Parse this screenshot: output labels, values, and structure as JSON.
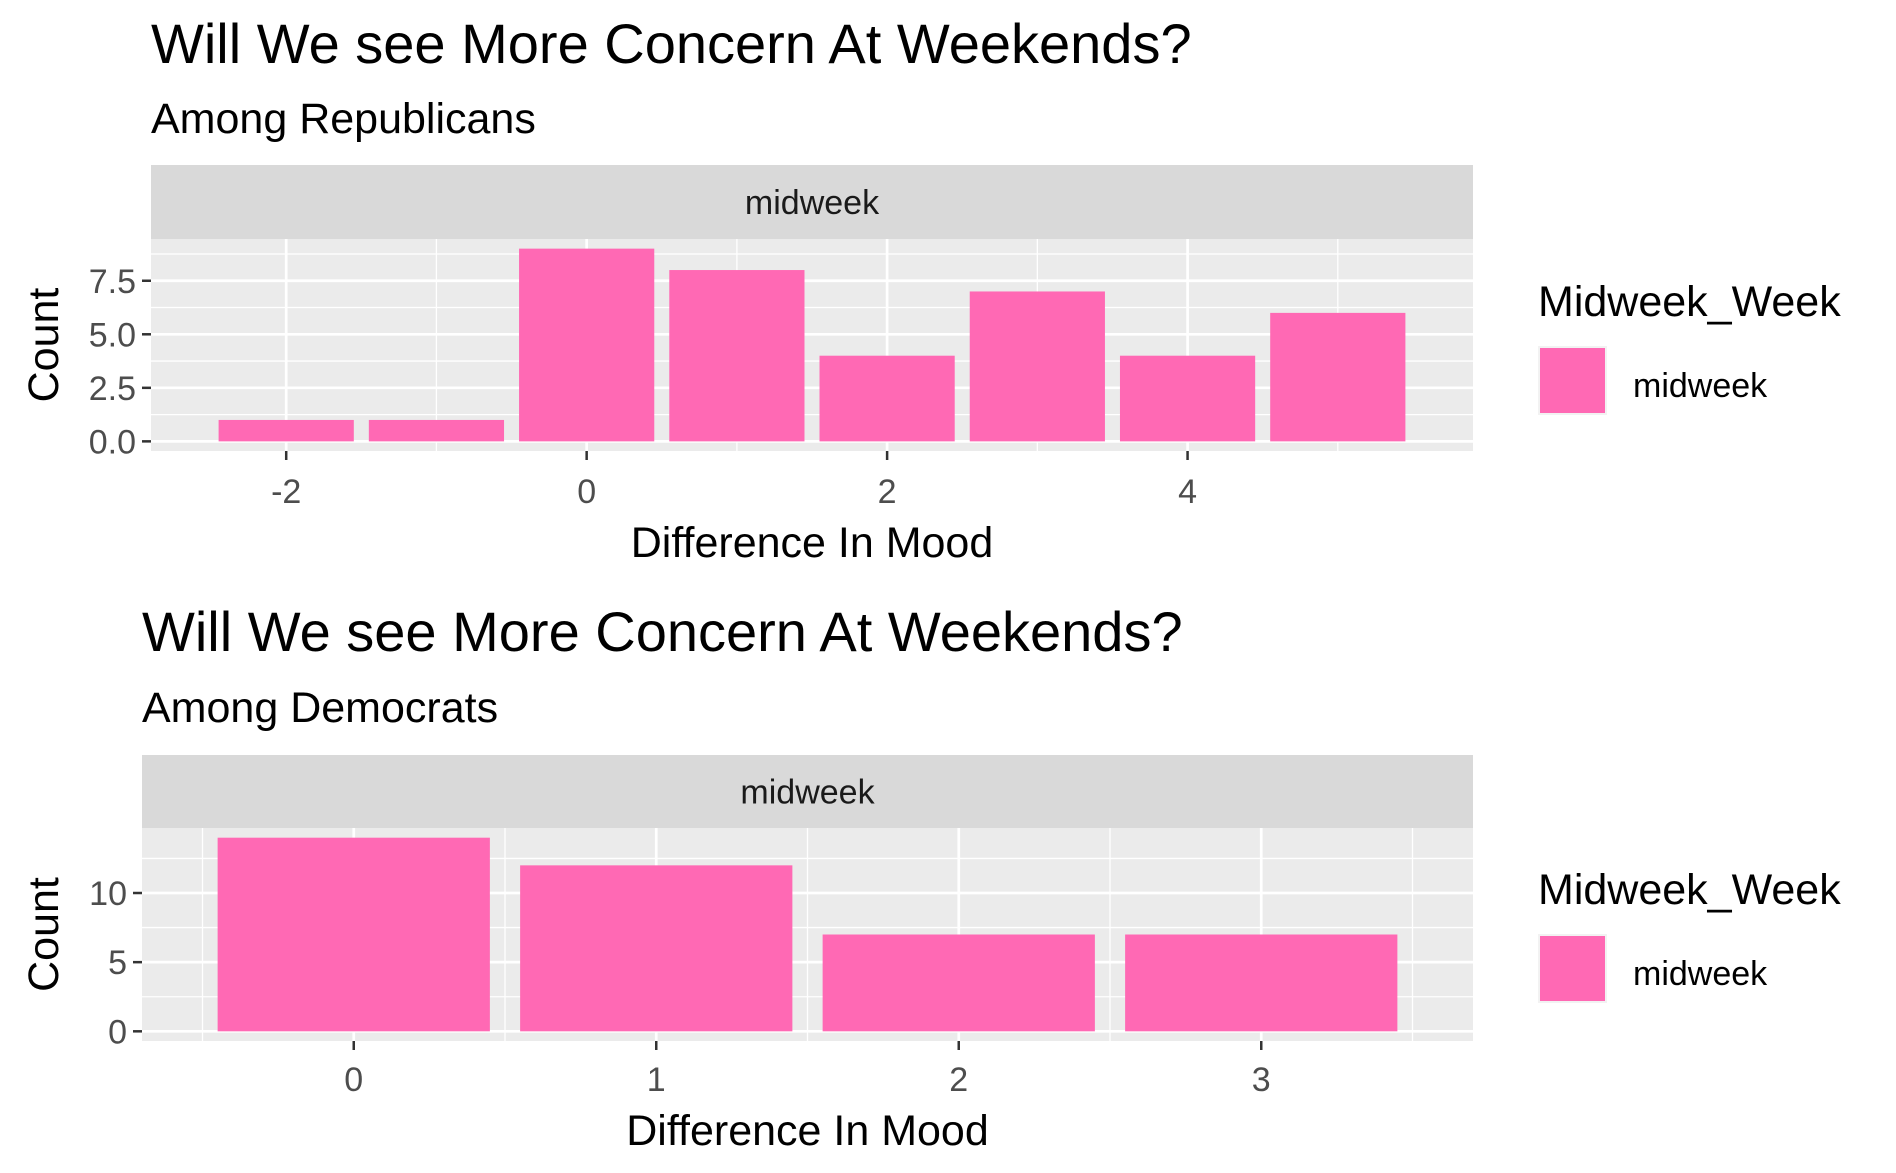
{
  "chart_data": [
    {
      "type": "bar",
      "title": "Will We see More Concern At Weekends?",
      "subtitle": "Among Republicans",
      "facet": "midweek",
      "xlabel": "Difference In Mood",
      "ylabel": "Count",
      "x": [
        -2,
        -1,
        0,
        1,
        2,
        3,
        4,
        5
      ],
      "values": [
        1,
        1,
        9,
        8,
        4,
        7,
        4,
        6
      ],
      "xlim": [
        -2.5,
        5.5
      ],
      "ylim": [
        0,
        9
      ],
      "xticks": [
        -2,
        0,
        2,
        4
      ],
      "xtick_labels": [
        "-2",
        "0",
        "2",
        "4"
      ],
      "yticks": [
        0,
        2.5,
        5,
        7.5
      ],
      "ytick_labels": [
        "0.0",
        "2.5",
        "5.0",
        "7.5"
      ],
      "grid": true,
      "legend": {
        "title": "Midweek_Week",
        "entries": [
          "midweek"
        ],
        "position": "right"
      },
      "color": "#FF69B4"
    },
    {
      "type": "bar",
      "title": "Will We see More Concern At Weekends?",
      "subtitle": "Among Democrats",
      "facet": "midweek",
      "xlabel": "Difference In Mood",
      "ylabel": "Count",
      "x": [
        0,
        1,
        2,
        3
      ],
      "values": [
        14,
        12,
        7,
        7
      ],
      "xlim": [
        -0.5,
        3.5
      ],
      "ylim": [
        0,
        14
      ],
      "xticks": [
        0,
        1,
        2,
        3
      ],
      "xtick_labels": [
        "0",
        "1",
        "2",
        "3"
      ],
      "yticks": [
        0,
        5,
        10
      ],
      "ytick_labels": [
        "0",
        "5",
        "10"
      ],
      "grid": true,
      "legend": {
        "title": "Midweek_Week",
        "entries": [
          "midweek"
        ],
        "position": "right"
      },
      "color": "#FF69B4"
    }
  ]
}
